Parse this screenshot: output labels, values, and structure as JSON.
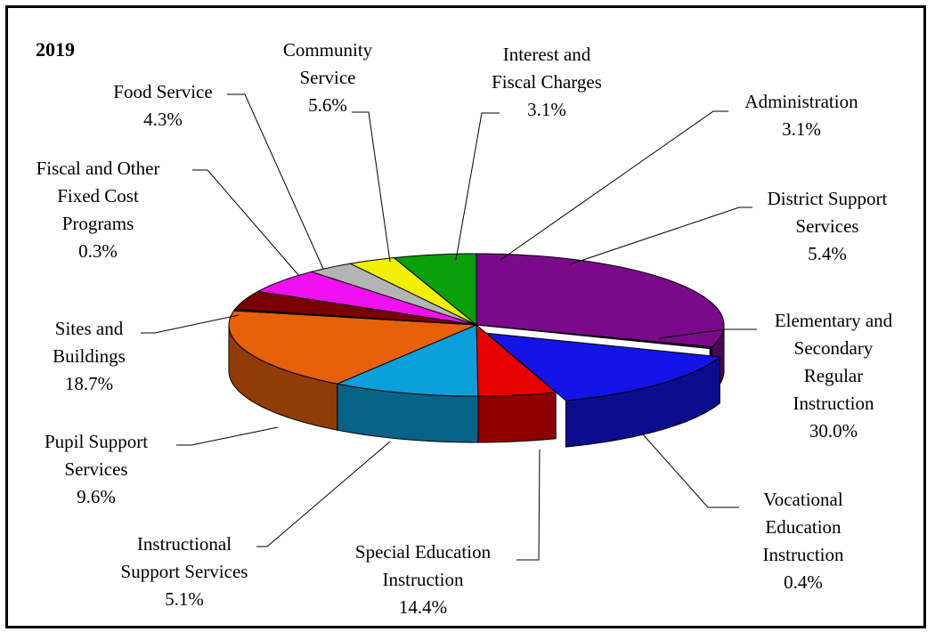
{
  "chart_data": {
    "type": "pie",
    "title": "2019",
    "style": "3d-exploded",
    "slices": [
      {
        "label": [
          "Elementary and",
          "Secondary",
          "Regular",
          "Instruction"
        ],
        "value": 30.0,
        "value_label": "30.0%",
        "color": "#7b0a8a"
      },
      {
        "label": [
          "Vocational",
          "Education",
          "Instruction"
        ],
        "value": 0.4,
        "value_label": "0.4%",
        "color": "#3b1040"
      },
      {
        "label": [
          "Special Education",
          "Instruction"
        ],
        "value": 14.4,
        "value_label": "14.4%",
        "color": "#1414e6"
      },
      {
        "label": [
          "Instructional",
          "Support Services"
        ],
        "value": 5.1,
        "value_label": "5.1%",
        "color": "#e60000"
      },
      {
        "label": [
          "Pupil Support",
          "Services"
        ],
        "value": 9.6,
        "value_label": "9.6%",
        "color": "#0aa0dc"
      },
      {
        "label": [
          "Sites and",
          "Buildings"
        ],
        "value": 18.7,
        "value_label": "18.7%",
        "color": "#e8600a"
      },
      {
        "label": [
          "Fiscal and Other",
          "Fixed Cost",
          "Programs"
        ],
        "value": 0.3,
        "value_label": "0.3%",
        "color": "#5a0a0a"
      },
      {
        "label": [
          "Food Service"
        ],
        "value": 4.3,
        "value_label": "4.3%",
        "color": "#7a0000"
      },
      {
        "label": [
          "Community",
          "Service"
        ],
        "value": 5.6,
        "value_label": "5.6%",
        "color": "#f010f0"
      },
      {
        "label": [
          "Interest and",
          "Fiscal Charges"
        ],
        "value": 3.1,
        "value_label": "3.1%",
        "color": "#b4b4b4"
      },
      {
        "label": [
          "Administration"
        ],
        "value": 3.1,
        "value_label": "3.1%",
        "color": "#f0f000"
      },
      {
        "label": [
          "District Support",
          "Services"
        ],
        "value": 5.4,
        "value_label": "5.4%",
        "color": "#0aa00a"
      }
    ]
  }
}
